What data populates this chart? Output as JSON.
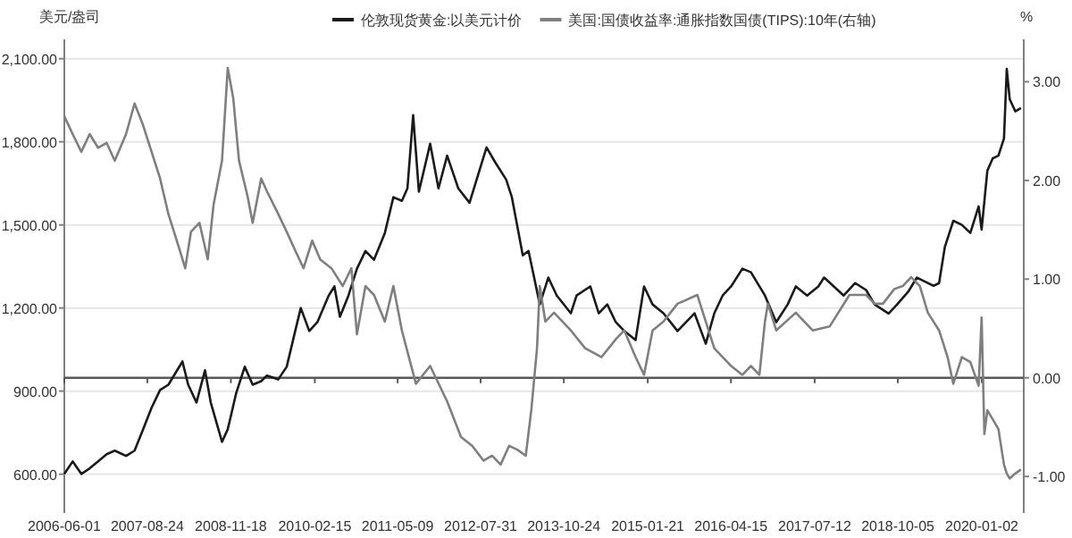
{
  "chart_data": {
    "type": "line",
    "ylabel": "美元/盎司",
    "y2label": "%",
    "xlim": [
      "2006-06-01",
      "2020-08-16"
    ],
    "xticks": [
      "2006-06-01",
      "2007-08-24",
      "2008-11-18",
      "2010-02-15",
      "2011-05-09",
      "2012-07-31",
      "2013-10-24",
      "2015-01-21",
      "2016-04-15",
      "2017-07-12",
      "2018-10-05",
      "2020-01-02"
    ],
    "ylim": [
      460,
      2170
    ],
    "yticks": [
      {
        "value": 600,
        "label": "600.00"
      },
      {
        "value": 900,
        "label": "900.00"
      },
      {
        "value": 1200,
        "label": "1,200.00"
      },
      {
        "value": 1500,
        "label": "1,500.00"
      },
      {
        "value": 1800,
        "label": "1,800.00"
      },
      {
        "value": 2100,
        "label": "2,100.00"
      }
    ],
    "y2lim": [
      -1.37,
      3.43
    ],
    "y2ticks": [
      {
        "value": -1,
        "label": "-1.00"
      },
      {
        "value": 0,
        "label": "0.00"
      },
      {
        "value": 1,
        "label": "1.00"
      },
      {
        "value": 2,
        "label": "2.00"
      },
      {
        "value": 3,
        "label": "3.00"
      }
    ],
    "grid": "y",
    "legend": "top",
    "ref_lines": [
      {
        "axis": "y2",
        "value": 0,
        "color": "#595959"
      }
    ],
    "series": [
      {
        "name": "伦敦现货黄金:以美元计价",
        "color": "#1a1a1a",
        "x": [
          "2006-06-01",
          "2006-07-16",
          "2006-09-01",
          "2006-10-16",
          "2006-12-01",
          "2007-01-16",
          "2007-03-01",
          "2007-05-01",
          "2007-06-16",
          "2007-08-01",
          "2007-09-16",
          "2007-11-01",
          "2007-12-16",
          "2008-03-01",
          "2008-04-01",
          "2008-05-16",
          "2008-07-01",
          "2008-08-01",
          "2008-10-01",
          "2008-11-01",
          "2008-12-16",
          "2009-02-01",
          "2009-03-16",
          "2009-05-01",
          "2009-06-01",
          "2009-08-01",
          "2009-09-16",
          "2009-11-01",
          "2009-12-01",
          "2010-01-16",
          "2010-03-01",
          "2010-05-01",
          "2010-06-01",
          "2010-07-01",
          "2010-08-16",
          "2010-10-01",
          "2010-11-16",
          "2011-01-01",
          "2011-03-01",
          "2011-04-16",
          "2011-06-01",
          "2011-07-01",
          "2011-08-01",
          "2011-09-01",
          "2011-11-01",
          "2011-12-16",
          "2012-02-01",
          "2012-04-01",
          "2012-06-01",
          "2012-09-01",
          "2012-10-16",
          "2012-12-16",
          "2013-01-16",
          "2013-03-16",
          "2013-04-16",
          "2013-06-16",
          "2013-08-01",
          "2013-09-16",
          "2013-12-01",
          "2014-01-01",
          "2014-03-16",
          "2014-05-01",
          "2014-06-16",
          "2014-08-01",
          "2014-09-16",
          "2014-11-16",
          "2015-01-01",
          "2015-02-16",
          "2015-04-16",
          "2015-07-01",
          "2015-10-01",
          "2015-12-01",
          "2016-01-16",
          "2016-03-01",
          "2016-04-16",
          "2016-06-16",
          "2016-08-01",
          "2016-10-16",
          "2016-12-16",
          "2017-02-16",
          "2017-04-01",
          "2017-06-01",
          "2017-08-01",
          "2017-09-01",
          "2017-12-16",
          "2018-02-16",
          "2018-04-16",
          "2018-06-01",
          "2018-08-16",
          "2018-10-01",
          "2018-12-01",
          "2019-01-16",
          "2019-04-16",
          "2019-05-16",
          "2019-06-16",
          "2019-08-01",
          "2019-09-16",
          "2019-11-01",
          "2019-12-16",
          "2020-01-01",
          "2020-02-01",
          "2020-03-01",
          "2020-04-01",
          "2020-05-01",
          "2020-05-16",
          "2020-06-01",
          "2020-07-01",
          "2020-08-01"
        ],
        "values": [
          601,
          646,
          601,
          621,
          646,
          672,
          685,
          666,
          685,
          762,
          840,
          904,
          923,
          1007,
          923,
          859,
          975,
          859,
          717,
          762,
          891,
          988,
          923,
          936,
          956,
          942,
          988,
          1117,
          1200,
          1117,
          1149,
          1245,
          1278,
          1168,
          1245,
          1342,
          1406,
          1374,
          1471,
          1600,
          1587,
          1632,
          1896,
          1620,
          1793,
          1632,
          1750,
          1632,
          1580,
          1780,
          1728,
          1664,
          1600,
          1390,
          1406,
          1213,
          1310,
          1245,
          1181,
          1245,
          1278,
          1181,
          1213,
          1149,
          1117,
          1084,
          1278,
          1213,
          1181,
          1117,
          1181,
          1071,
          1181,
          1245,
          1278,
          1342,
          1329,
          1245,
          1149,
          1213,
          1278,
          1245,
          1278,
          1310,
          1245,
          1290,
          1265,
          1213,
          1180,
          1213,
          1260,
          1310,
          1280,
          1290,
          1420,
          1515,
          1500,
          1471,
          1567,
          1483,
          1696,
          1740,
          1750,
          1812,
          2063,
          1954,
          1910,
          1922
        ]
      },
      {
        "name": "美国:国债收益率:通胀指数国债(TIPS):10年(右轴)",
        "color": "#7f7f7f",
        "axis": "y2",
        "x": [
          "2006-06-01",
          "2006-07-16",
          "2006-09-01",
          "2006-10-16",
          "2006-12-01",
          "2007-01-16",
          "2007-03-01",
          "2007-05-01",
          "2007-06-16",
          "2007-08-01",
          "2007-09-16",
          "2007-11-01",
          "2007-12-16",
          "2008-02-16",
          "2008-03-16",
          "2008-04-16",
          "2008-06-01",
          "2008-07-16",
          "2008-08-16",
          "2008-10-01",
          "2008-11-01",
          "2008-12-01",
          "2009-01-01",
          "2009-02-16",
          "2009-03-16",
          "2009-05-01",
          "2009-06-01",
          "2009-08-01",
          "2009-09-16",
          "2009-11-01",
          "2009-12-16",
          "2010-02-01",
          "2010-03-16",
          "2010-05-16",
          "2010-07-16",
          "2010-09-01",
          "2010-10-01",
          "2010-11-16",
          "2011-01-01",
          "2011-03-01",
          "2011-04-16",
          "2011-06-01",
          "2011-07-16",
          "2011-08-16",
          "2011-11-01",
          "2012-02-01",
          "2012-04-16",
          "2012-06-16",
          "2012-08-16",
          "2012-10-01",
          "2012-11-16",
          "2013-01-01",
          "2013-02-16",
          "2013-04-01",
          "2013-05-01",
          "2013-06-01",
          "2013-06-16",
          "2013-07-16",
          "2013-09-01",
          "2013-12-01",
          "2014-02-16",
          "2014-05-16",
          "2014-08-01",
          "2014-09-16",
          "2014-11-16",
          "2015-01-01",
          "2015-02-16",
          "2015-04-16",
          "2015-07-01",
          "2015-10-16",
          "2015-12-01",
          "2016-01-16",
          "2016-03-01",
          "2016-04-16",
          "2016-06-16",
          "2016-08-01",
          "2016-09-16",
          "2016-10-16",
          "2016-11-01",
          "2016-12-16",
          "2017-04-01",
          "2017-07-01",
          "2017-10-01",
          "2018-01-16",
          "2018-04-16",
          "2018-06-01",
          "2018-07-16",
          "2018-09-16",
          "2018-11-01",
          "2018-12-16",
          "2019-02-01",
          "2019-03-16",
          "2019-05-16",
          "2019-07-01",
          "2019-08-01",
          "2019-09-16",
          "2019-11-01",
          "2019-12-16",
          "2020-01-01",
          "2020-01-16",
          "2020-02-01",
          "2020-03-01",
          "2020-04-01",
          "2020-05-01",
          "2020-05-16",
          "2020-06-01",
          "2020-07-01",
          "2020-08-01"
        ],
        "values": [
          2.65,
          2.47,
          2.29,
          2.47,
          2.33,
          2.38,
          2.2,
          2.47,
          2.78,
          2.56,
          2.29,
          2.02,
          1.66,
          1.29,
          1.11,
          1.48,
          1.57,
          1.2,
          1.75,
          2.2,
          3.14,
          2.83,
          2.2,
          1.84,
          1.57,
          2.02,
          1.89,
          1.66,
          1.48,
          1.29,
          1.11,
          1.39,
          1.2,
          1.11,
          0.93,
          1.11,
          0.44,
          0.93,
          0.84,
          0.57,
          0.93,
          0.48,
          0.16,
          -0.06,
          0.12,
          -0.24,
          -0.6,
          -0.69,
          -0.84,
          -0.79,
          -0.88,
          -0.69,
          -0.73,
          -0.79,
          -0.33,
          0.3,
          0.93,
          0.57,
          0.66,
          0.48,
          0.3,
          0.21,
          0.39,
          0.48,
          0.21,
          0.03,
          0.48,
          0.57,
          0.75,
          0.84,
          0.57,
          0.3,
          0.21,
          0.12,
          0.03,
          0.12,
          0.03,
          0.57,
          0.75,
          0.48,
          0.66,
          0.48,
          0.52,
          0.84,
          0.84,
          0.75,
          0.75,
          0.9,
          0.93,
          1.02,
          0.93,
          0.66,
          0.48,
          0.21,
          -0.06,
          0.21,
          0.16,
          -0.08,
          0.61,
          -0.57,
          -0.33,
          -0.42,
          -0.52,
          -0.88,
          -0.97,
          -1.02,
          -0.97,
          -0.93
        ]
      }
    ]
  }
}
